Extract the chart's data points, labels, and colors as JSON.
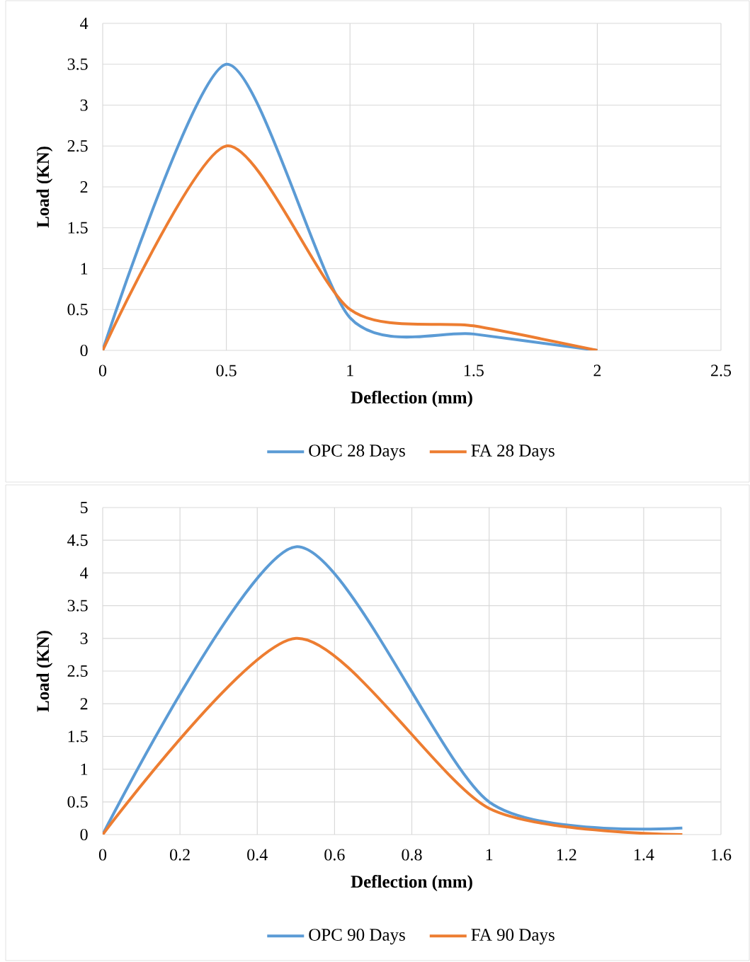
{
  "chart_data": [
    {
      "type": "line",
      "xlabel": "Deflection (mm)",
      "ylabel": "Load (KN)",
      "x": [
        0,
        0.5,
        1,
        1.5,
        2
      ],
      "series": [
        {
          "name": "OPC 28 Days",
          "color": "#5b9bd5",
          "values": [
            0,
            3.5,
            0.4,
            0.2,
            0
          ]
        },
        {
          "name": "FA 28 Days",
          "color": "#ed7d31",
          "values": [
            0,
            2.5,
            0.5,
            0.3,
            0
          ]
        }
      ],
      "xlim": [
        0,
        2.5
      ],
      "xticks": [
        0,
        0.5,
        1,
        1.5,
        2,
        2.5
      ],
      "ylim": [
        0,
        4
      ],
      "yticks": [
        0,
        0.5,
        1,
        1.5,
        2,
        2.5,
        3,
        3.5,
        4
      ],
      "grid": true,
      "legend": "bottom",
      "marker": "none",
      "line_style": "solid"
    },
    {
      "type": "line",
      "xlabel": "Deflection (mm)",
      "ylabel": "Load (KN)",
      "x": [
        0,
        0.5,
        1,
        1.5
      ],
      "series": [
        {
          "name": "OPC 90 Days",
          "color": "#5b9bd5",
          "values": [
            0,
            4.4,
            0.5,
            0.1
          ]
        },
        {
          "name": "FA 90 Days",
          "color": "#ed7d31",
          "values": [
            0,
            3,
            0.4,
            0
          ]
        }
      ],
      "xlim": [
        0,
        1.6
      ],
      "xticks": [
        0,
        0.2,
        0.4,
        0.6,
        0.8,
        1,
        1.2,
        1.4,
        1.6
      ],
      "ylim": [
        0,
        5
      ],
      "yticks": [
        0,
        0.5,
        1,
        1.5,
        2,
        2.5,
        3,
        3.5,
        4,
        4.5,
        5
      ],
      "grid": true,
      "legend": "bottom",
      "marker": "none",
      "line_style": "solid"
    }
  ]
}
